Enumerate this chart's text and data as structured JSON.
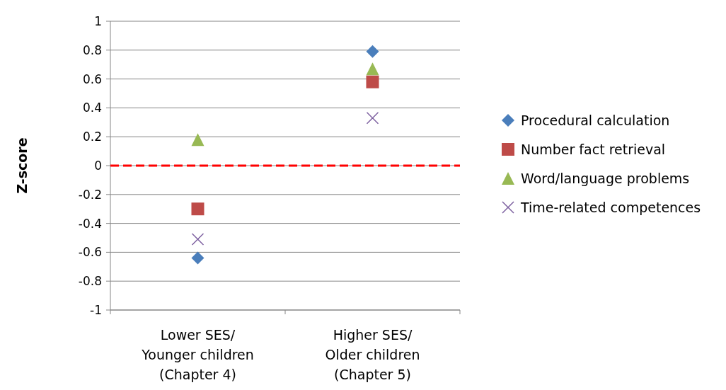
{
  "chart_data": {
    "type": "scatter",
    "ylabel": "Z-score",
    "categories": [
      "Lower SES/\nYounger children\n(Chapter 4)",
      "Higher SES/\nOlder children\n(Chapter 5)"
    ],
    "series": [
      {
        "name": "Procedural calculation",
        "color": "#4a7ebb",
        "marker": "diamond",
        "values": [
          -0.64,
          0.79
        ]
      },
      {
        "name": "Number fact retrieval",
        "color": "#be4b48",
        "marker": "square",
        "values": [
          -0.3,
          0.58
        ]
      },
      {
        "name": "Word/language problems",
        "color": "#98b954",
        "marker": "triangle",
        "values": [
          0.18,
          0.67
        ]
      },
      {
        "name": "Time-related competences",
        "color": "#7d60a0",
        "marker": "cross",
        "values": [
          -0.51,
          0.33
        ]
      }
    ],
    "ylim": [
      -1,
      1
    ],
    "yticks": [
      -1,
      -0.8,
      -0.6,
      -0.4,
      -0.2,
      0,
      0.2,
      0.4,
      0.6,
      0.8,
      1
    ],
    "grid": "y",
    "legend": "right",
    "ref_lines": [
      {
        "axis": "y",
        "value": 0,
        "color": "#ff0000",
        "line_style": "dashed"
      }
    ]
  }
}
